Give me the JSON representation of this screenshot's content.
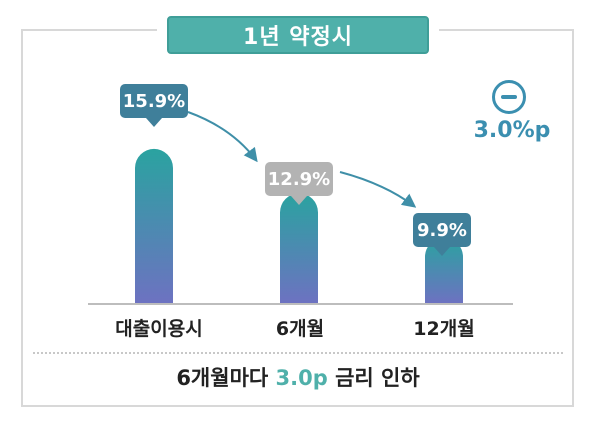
{
  "title": "1년 약정시",
  "footer": {
    "prefix": "6개월마다",
    "highlight": "3.0p",
    "suffix": "금리 인하"
  },
  "delta": {
    "icon": "minus-circle-icon",
    "label": "3.0%p"
  },
  "colors": {
    "accent": "#4fb0aa",
    "bar_top": "#2aa3a0",
    "bar_bottom": "#6d72c1",
    "callout_dark": "#3f7f9a",
    "callout_gray": "#b3b3b3",
    "arrow": "#3f8fa8"
  },
  "chart_data": {
    "type": "bar",
    "categories": [
      "대출이용시",
      "6개월",
      "12개월"
    ],
    "values": [
      15.9,
      12.9,
      9.9
    ],
    "data_labels": [
      "15.9%",
      "12.9%",
      "9.9%"
    ],
    "ylim": [
      5.5,
      16.5
    ],
    "title": "",
    "xlabel": "",
    "ylabel": ""
  }
}
